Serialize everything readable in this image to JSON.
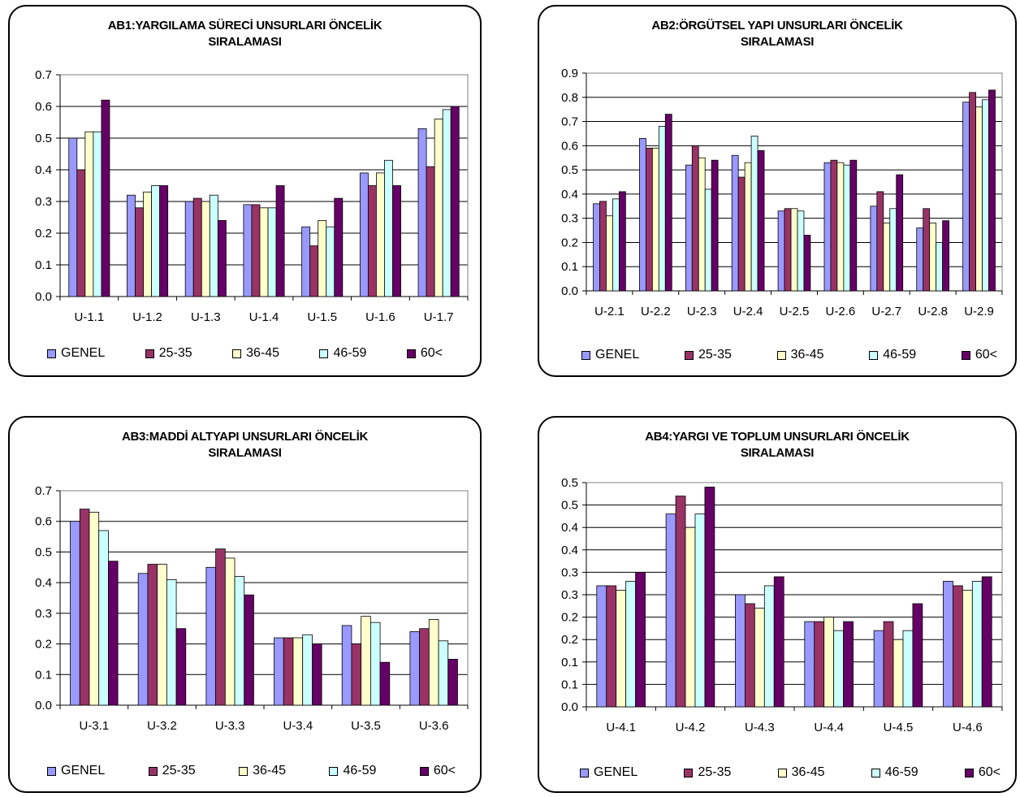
{
  "colors": {
    "GENEL": "#9999ff",
    "25-35": "#993366",
    "36-45": "#ffffcc",
    "46-59": "#ccffff",
    "60<": "#660066"
  },
  "legend": [
    "GENEL",
    "25-35",
    "36-45",
    "46-59",
    "60<"
  ],
  "charts": [
    {
      "title_line1": "AB1:YARGILAMA SÜRECİ UNSURLARI ÖNCELİK",
      "title_line2": "SIRALAMASI"
    },
    {
      "title_line1": "AB2:ÖRGÜTSEL YAPI UNSURLARI ÖNCELİK",
      "title_line2": "SIRALAMASI"
    },
    {
      "title_line1": "AB3:MADDİ ALTYAPI UNSURLARI ÖNCELİK",
      "title_line2": "SIRALAMASI"
    },
    {
      "title_line1": "AB4:YARGI VE TOPLUM UNSURLARI ÖNCELİK",
      "title_line2": "SIRALAMASI"
    }
  ],
  "chart_data": [
    {
      "type": "bar",
      "title": "AB1:YARGILAMA SÜRECİ UNSURLARI ÖNCELİK SIRALAMASI",
      "categories": [
        "U-1.1",
        "U-1.2",
        "U-1.3",
        "U-1.4",
        "U-1.5",
        "U-1.6",
        "U-1.7"
      ],
      "ylim": [
        0,
        0.7
      ],
      "yticks": [
        "0.0",
        "0.1",
        "0.2",
        "0.3",
        "0.4",
        "0.5",
        "0.6",
        "0.7"
      ],
      "grid": true,
      "legend_position": "bottom",
      "series": [
        {
          "name": "GENEL",
          "values": [
            0.5,
            0.32,
            0.3,
            0.29,
            0.22,
            0.39,
            0.53
          ]
        },
        {
          "name": "25-35",
          "values": [
            0.4,
            0.28,
            0.31,
            0.29,
            0.16,
            0.35,
            0.41
          ]
        },
        {
          "name": "36-45",
          "values": [
            0.52,
            0.33,
            0.3,
            0.28,
            0.24,
            0.39,
            0.56
          ]
        },
        {
          "name": "46-59",
          "values": [
            0.52,
            0.35,
            0.32,
            0.28,
            0.22,
            0.43,
            0.59
          ]
        },
        {
          "name": "60<",
          "values": [
            0.62,
            0.35,
            0.24,
            0.35,
            0.31,
            0.35,
            0.6
          ]
        }
      ]
    },
    {
      "type": "bar",
      "title": "AB2:ÖRGÜTSEL YAPI UNSURLARI ÖNCELİK SIRALAMASI",
      "categories": [
        "U-2.1",
        "U-2.2",
        "U-2.3",
        "U-2.4",
        "U-2.5",
        "U-2.6",
        "U-2.7",
        "U-2.8",
        "U-2.9"
      ],
      "ylim": [
        0,
        0.9
      ],
      "yticks": [
        "0.0",
        "0.1",
        "0.2",
        "0.3",
        "0.4",
        "0.5",
        "0.6",
        "0.7",
        "0.8",
        "0.9"
      ],
      "grid": true,
      "legend_position": "bottom",
      "series": [
        {
          "name": "GENEL",
          "values": [
            0.36,
            0.63,
            0.52,
            0.56,
            0.33,
            0.53,
            0.35,
            0.26,
            0.78
          ]
        },
        {
          "name": "25-35",
          "values": [
            0.37,
            0.59,
            0.6,
            0.47,
            0.34,
            0.54,
            0.41,
            0.34,
            0.82
          ]
        },
        {
          "name": "36-45",
          "values": [
            0.31,
            0.59,
            0.55,
            0.53,
            0.34,
            0.53,
            0.28,
            0.28,
            0.76
          ]
        },
        {
          "name": "46-59",
          "values": [
            0.38,
            0.68,
            0.42,
            0.64,
            0.33,
            0.52,
            0.34,
            0.2,
            0.79
          ]
        },
        {
          "name": "60<",
          "values": [
            0.41,
            0.73,
            0.54,
            0.58,
            0.23,
            0.54,
            0.48,
            0.29,
            0.83
          ]
        }
      ]
    },
    {
      "type": "bar",
      "title": "AB3:MADDİ ALTYAPI UNSURLARI ÖNCELİK SIRALAMASI",
      "categories": [
        "U-3.1",
        "U-3.2",
        "U-3.3",
        "U-3.4",
        "U-3.5",
        "U-3.6"
      ],
      "ylim": [
        0,
        0.7
      ],
      "yticks": [
        "0.0",
        "0.1",
        "0.2",
        "0.3",
        "0.4",
        "0.5",
        "0.6",
        "0.7"
      ],
      "grid": true,
      "legend_position": "bottom",
      "series": [
        {
          "name": "GENEL",
          "values": [
            0.6,
            0.43,
            0.45,
            0.22,
            0.26,
            0.24
          ]
        },
        {
          "name": "25-35",
          "values": [
            0.64,
            0.46,
            0.51,
            0.22,
            0.2,
            0.25
          ]
        },
        {
          "name": "36-45",
          "values": [
            0.63,
            0.46,
            0.48,
            0.22,
            0.29,
            0.28
          ]
        },
        {
          "name": "46-59",
          "values": [
            0.57,
            0.41,
            0.42,
            0.23,
            0.27,
            0.21
          ]
        },
        {
          "name": "60<",
          "values": [
            0.47,
            0.25,
            0.36,
            0.2,
            0.14,
            0.15
          ]
        }
      ]
    },
    {
      "type": "bar",
      "title": "AB4:YARGI VE TOPLUM UNSURLARI ÖNCELİK SIRALAMASI",
      "categories": [
        "U-4.1",
        "U-4.2",
        "U-4.3",
        "U-4.4",
        "U-4.5",
        "U-4.6"
      ],
      "ylim": [
        0,
        0.5
      ],
      "yticks": [
        "0.0",
        "0.1",
        "0.1",
        "0.2",
        "0.2",
        "0.3",
        "0.3",
        "0.4",
        "0.4",
        "0.5",
        "0.5"
      ],
      "grid": true,
      "legend_position": "bottom",
      "series": [
        {
          "name": "GENEL",
          "values": [
            0.27,
            0.43,
            0.25,
            0.19,
            0.17,
            0.28
          ]
        },
        {
          "name": "25-35",
          "values": [
            0.27,
            0.47,
            0.23,
            0.19,
            0.19,
            0.27
          ]
        },
        {
          "name": "36-45",
          "values": [
            0.26,
            0.4,
            0.22,
            0.2,
            0.15,
            0.26
          ]
        },
        {
          "name": "46-59",
          "values": [
            0.28,
            0.43,
            0.27,
            0.17,
            0.17,
            0.28
          ]
        },
        {
          "name": "60<",
          "values": [
            0.3,
            0.49,
            0.29,
            0.19,
            0.23,
            0.29
          ]
        }
      ]
    }
  ]
}
